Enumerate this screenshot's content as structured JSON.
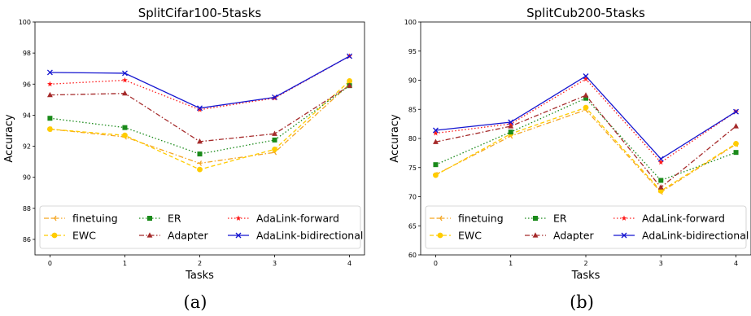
{
  "colors": {
    "finetuing": "#f5a623",
    "EWC": "#ffcc00",
    "ER": "#1a8a1a",
    "Adapter": "#a52a2a",
    "AdaLink-forward": "#ff1a1a",
    "AdaLink-bidirectional": "#1515d0"
  },
  "chart_data": [
    {
      "type": "line",
      "title": "SplitCifar100-5tasks",
      "xlabel": "Tasks",
      "ylabel": "Accuracy",
      "x": [
        0,
        1,
        2,
        3,
        4
      ],
      "xticks": [
        "0",
        "1",
        "2",
        "3",
        "4"
      ],
      "yticks": [
        "86",
        "88",
        "90",
        "92",
        "94",
        "96",
        "98",
        "100"
      ],
      "ylim": [
        85,
        100
      ],
      "caption": "(a)",
      "legend_position": "bottom",
      "series": [
        {
          "name": "finetuing",
          "values": [
            93.1,
            92.6,
            90.9,
            91.6,
            96.0
          ],
          "style": "dashdot",
          "marker": "tri"
        },
        {
          "name": "EWC",
          "values": [
            93.1,
            92.7,
            90.5,
            91.8,
            96.2
          ],
          "style": "dashed",
          "marker": "circle"
        },
        {
          "name": "ER",
          "values": [
            93.8,
            93.2,
            91.5,
            92.4,
            95.9
          ],
          "style": "dotted",
          "marker": "square"
        },
        {
          "name": "Adapter",
          "values": [
            95.3,
            95.4,
            92.3,
            92.8,
            95.9
          ],
          "style": "dashdot",
          "marker": "triangle"
        },
        {
          "name": "AdaLink-forward",
          "values": [
            96.0,
            96.25,
            94.35,
            95.1,
            97.8
          ],
          "style": "dotted",
          "marker": "star"
        },
        {
          "name": "AdaLink-bidirectional",
          "values": [
            96.75,
            96.7,
            94.45,
            95.15,
            97.8
          ],
          "style": "solid",
          "marker": "x"
        }
      ]
    },
    {
      "type": "line",
      "title": "SplitCub200-5tasks",
      "xlabel": "Tasks",
      "ylabel": "Accuracy",
      "x": [
        0,
        1,
        2,
        3,
        4
      ],
      "xticks": [
        "0",
        "1",
        "2",
        "3",
        "4"
      ],
      "yticks": [
        "60",
        "65",
        "70",
        "75",
        "80",
        "85",
        "90",
        "95",
        "100"
      ],
      "ylim": [
        60,
        100
      ],
      "caption": "(b)",
      "legend_position": "bottom",
      "series": [
        {
          "name": "finetuing",
          "values": [
            73.8,
            80.4,
            84.9,
            70.8,
            79.0
          ],
          "style": "dashdot",
          "marker": "tri"
        },
        {
          "name": "EWC",
          "values": [
            73.7,
            80.8,
            85.3,
            71.0,
            79.1
          ],
          "style": "dashed",
          "marker": "circle"
        },
        {
          "name": "ER",
          "values": [
            75.5,
            81.1,
            86.9,
            72.8,
            77.6
          ],
          "style": "dotted",
          "marker": "square"
        },
        {
          "name": "Adapter",
          "values": [
            79.4,
            82.1,
            87.4,
            71.6,
            82.1
          ],
          "style": "dashdot",
          "marker": "triangle"
        },
        {
          "name": "AdaLink-forward",
          "values": [
            80.9,
            82.5,
            90.2,
            75.9,
            84.6
          ],
          "style": "dotted",
          "marker": "star"
        },
        {
          "name": "AdaLink-bidirectional",
          "values": [
            81.4,
            82.8,
            90.7,
            76.5,
            84.6
          ],
          "style": "solid",
          "marker": "x"
        }
      ]
    }
  ]
}
